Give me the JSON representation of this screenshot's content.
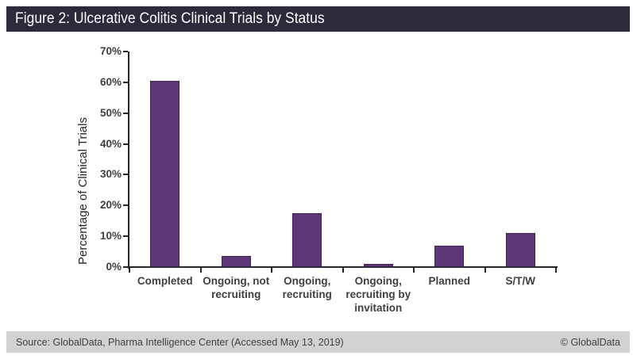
{
  "header": {
    "title": "Figure 2: Ulcerative Colitis Clinical Trials by Status"
  },
  "chart_data": {
    "type": "bar",
    "categories": [
      "Completed",
      "Ongoing, not recruiting",
      "Ongoing, recruiting",
      "Ongoing, recruiting by invitation",
      "Planned",
      "S/T/W"
    ],
    "values": [
      60.5,
      3.5,
      17.5,
      1,
      7,
      11
    ],
    "title": "",
    "xlabel": "",
    "ylabel": "Percentage of Clinical Trials",
    "ylim": [
      0,
      70
    ],
    "ytick_step": 10,
    "ytick_labels": [
      "0%",
      "10%",
      "20%",
      "30%",
      "40%",
      "50%",
      "60%",
      "70%"
    ],
    "grid": false,
    "legend": false
  },
  "footer": {
    "source": "Source: GlobalData, Pharma Intelligence Center (Accessed May 13, 2019)",
    "copyright": "© GlobalData"
  },
  "colors": {
    "page_bg": "#ffffff",
    "header_bg": "#2c2a3b",
    "header_text": "#ffffff",
    "bar_fill": "#5c3677",
    "bar_border": "#3d2356",
    "axis": "#262626",
    "tick_label": "#3f3f3f",
    "footer_bg": "#d2d2d2",
    "footer_text": "#3f3f3f"
  }
}
